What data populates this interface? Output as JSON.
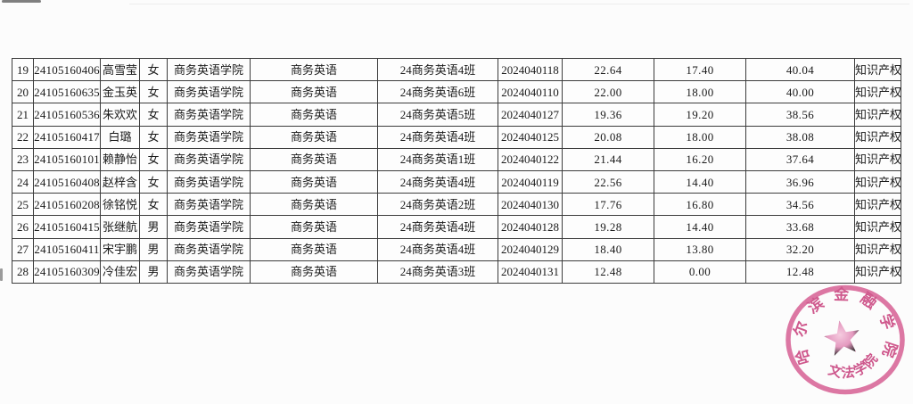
{
  "table": {
    "rows": [
      {
        "no": "19",
        "student_id": "24105160406",
        "name": "高雪莹",
        "gender": "女",
        "college": "商务英语学院",
        "major": "商务英语",
        "class_name": "24商务英语4班",
        "exam_no": "2024040118",
        "score1": "22.64",
        "score2": "17.40",
        "total": "40.04",
        "category": "知识产权"
      },
      {
        "no": "20",
        "student_id": "24105160635",
        "name": "金玉英",
        "gender": "女",
        "college": "商务英语学院",
        "major": "商务英语",
        "class_name": "24商务英语6班",
        "exam_no": "2024040110",
        "score1": "22.00",
        "score2": "18.00",
        "total": "40.00",
        "category": "知识产权"
      },
      {
        "no": "21",
        "student_id": "24105160536",
        "name": "朱欢欢",
        "gender": "女",
        "college": "商务英语学院",
        "major": "商务英语",
        "class_name": "24商务英语5班",
        "exam_no": "2024040127",
        "score1": "19.36",
        "score2": "19.20",
        "total": "38.56",
        "category": "知识产权"
      },
      {
        "no": "22",
        "student_id": "24105160417",
        "name": "白璐",
        "gender": "女",
        "college": "商务英语学院",
        "major": "商务英语",
        "class_name": "24商务英语4班",
        "exam_no": "2024040125",
        "score1": "20.08",
        "score2": "18.00",
        "total": "38.08",
        "category": "知识产权"
      },
      {
        "no": "23",
        "student_id": "24105160101",
        "name": "赖静怡",
        "gender": "女",
        "college": "商务英语学院",
        "major": "商务英语",
        "class_name": "24商务英语1班",
        "exam_no": "2024040122",
        "score1": "21.44",
        "score2": "16.20",
        "total": "37.64",
        "category": "知识产权"
      },
      {
        "no": "24",
        "student_id": "24105160408",
        "name": "赵梓含",
        "gender": "女",
        "college": "商务英语学院",
        "major": "商务英语",
        "class_name": "24商务英语4班",
        "exam_no": "2024040119",
        "score1": "22.56",
        "score2": "14.40",
        "total": "36.96",
        "category": "知识产权"
      },
      {
        "no": "25",
        "student_id": "24105160208",
        "name": "徐铭悦",
        "gender": "女",
        "college": "商务英语学院",
        "major": "商务英语",
        "class_name": "24商务英语2班",
        "exam_no": "2024040130",
        "score1": "17.76",
        "score2": "16.80",
        "total": "34.56",
        "category": "知识产权"
      },
      {
        "no": "26",
        "student_id": "24105160415",
        "name": "张继航",
        "gender": "男",
        "college": "商务英语学院",
        "major": "商务英语",
        "class_name": "24商务英语4班",
        "exam_no": "2024040128",
        "score1": "19.28",
        "score2": "14.40",
        "total": "33.68",
        "category": "知识产权"
      },
      {
        "no": "27",
        "student_id": "24105160411",
        "name": "宋宇鹏",
        "gender": "男",
        "college": "商务英语学院",
        "major": "商务英语",
        "class_name": "24商务英语4班",
        "exam_no": "2024040129",
        "score1": "18.40",
        "score2": "13.80",
        "total": "32.20",
        "category": "知识产权"
      },
      {
        "no": "28",
        "student_id": "24105160309",
        "name": "冷佳宏",
        "gender": "男",
        "college": "商务英语学院",
        "major": "商务英语",
        "class_name": "24商务英语3班",
        "exam_no": "2024040131",
        "score1": "12.48",
        "score2": "0.00",
        "total": "12.48",
        "category": "知识产权"
      }
    ]
  },
  "stamp": {
    "ring_text": "哈尔滨金融学院",
    "bottom_text": "文法学院",
    "color": "#d4548c"
  }
}
